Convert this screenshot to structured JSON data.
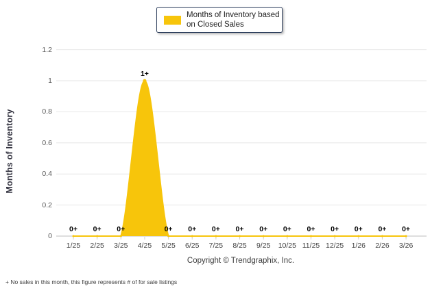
{
  "legend": {
    "label": "Months of Inventory based on Closed Sales",
    "swatch_color": "#F7C50B"
  },
  "chart_data": {
    "type": "area",
    "title": "",
    "categories": [
      "1/25",
      "2/25",
      "3/25",
      "4/25",
      "5/25",
      "6/25",
      "7/25",
      "8/25",
      "9/25",
      "10/25",
      "11/25",
      "12/25",
      "1/26",
      "2/26",
      "3/26"
    ],
    "values": [
      0,
      0,
      0,
      1,
      0,
      0,
      0,
      0,
      0,
      0,
      0,
      0,
      0,
      0,
      0
    ],
    "point_labels": [
      "0+",
      "0+",
      "0+",
      "1+",
      "0+",
      "0+",
      "0+",
      "0+",
      "0+",
      "0+",
      "0+",
      "0+",
      "0+",
      "0+",
      "0+"
    ],
    "xlabel": "",
    "ylabel": "Months of Inventory",
    "y_ticks": [
      "0",
      "0.2",
      "0.4",
      "0.6",
      "0.8",
      "1",
      "1.2"
    ],
    "y_tick_values": [
      0,
      0.2,
      0.4,
      0.6,
      0.8,
      1,
      1.2
    ],
    "ylim": [
      0,
      1.2
    ],
    "grid": true,
    "legend_position": "top-center",
    "series_name": "Months of Inventory based on Closed Sales",
    "series_color": "#F7C50B",
    "grid_color": "#E6E6E6",
    "axis_color": "#BDBDBD"
  },
  "footer": {
    "copyright": "Copyright © Trendgraphix, Inc.",
    "footnote": "+ No sales in this month, this figure represents # of for sale listings"
  }
}
